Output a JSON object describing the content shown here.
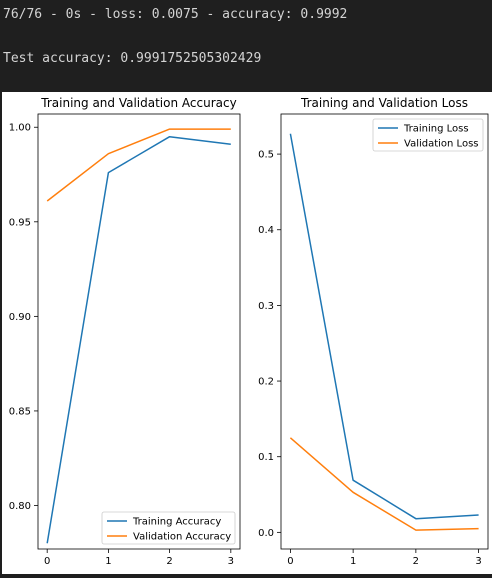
{
  "console": {
    "line1": "76/76 - 0s - loss: 0.0075 - accuracy: 0.9992",
    "line2": "Test accuracy: 0.9991752505302429"
  },
  "colors": {
    "series_blue": "#1f77b4",
    "series_orange": "#ff7f0e"
  },
  "chart_data": [
    {
      "type": "line",
      "title": "Training and Validation Accuracy",
      "xlabel": "",
      "ylabel": "",
      "x": [
        0,
        1,
        2,
        3
      ],
      "xticks": [
        "0",
        "1",
        "2",
        "3"
      ],
      "yticks": [
        "0.80",
        "0.85",
        "0.90",
        "0.95",
        "1.00"
      ],
      "ylim": [
        0.777,
        1.007
      ],
      "legend_position": "lower-right",
      "series": [
        {
          "name": "Training Accuracy",
          "values": [
            0.78,
            0.976,
            0.995,
            0.991
          ]
        },
        {
          "name": "Validation Accuracy",
          "values": [
            0.961,
            0.986,
            0.999,
            0.999
          ]
        }
      ]
    },
    {
      "type": "line",
      "title": "Training and Validation Loss",
      "xlabel": "",
      "ylabel": "",
      "x": [
        0,
        1,
        2,
        3
      ],
      "xticks": [
        "0",
        "1",
        "2",
        "3"
      ],
      "yticks": [
        "0.0",
        "0.1",
        "0.2",
        "0.3",
        "0.4",
        "0.5"
      ],
      "ylim": [
        -0.022,
        0.553
      ],
      "legend_position": "upper-right",
      "series": [
        {
          "name": "Training Loss",
          "values": [
            0.527,
            0.069,
            0.018,
            0.023
          ]
        },
        {
          "name": "Validation Loss",
          "values": [
            0.125,
            0.053,
            0.003,
            0.005
          ]
        }
      ]
    }
  ]
}
